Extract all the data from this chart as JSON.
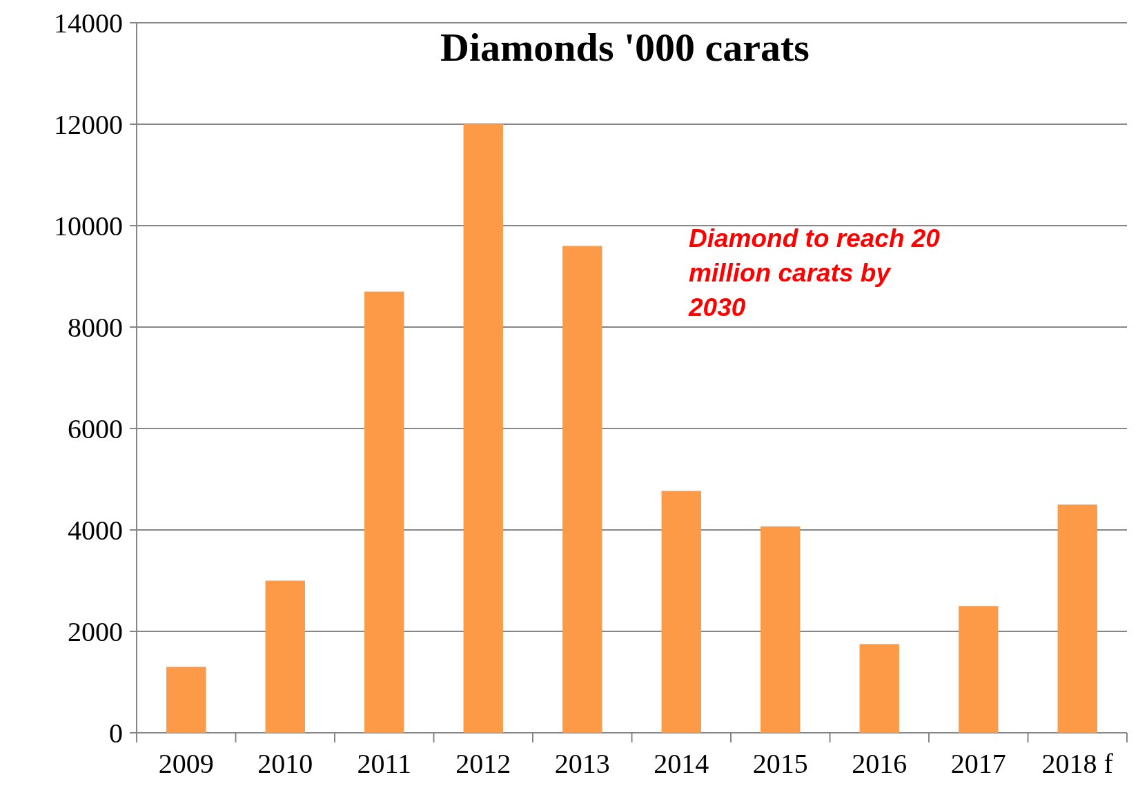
{
  "chart_data": {
    "type": "bar",
    "title": "Diamonds '000 carats",
    "categories": [
      "2009",
      "2010",
      "2011",
      "2012",
      "2013",
      "2014",
      "2015",
      "2016",
      "2017",
      "2018 f"
    ],
    "values": [
      1300,
      3000,
      8700,
      12000,
      9600,
      4770,
      4070,
      1750,
      2500,
      4500
    ],
    "color": "#fd9a47",
    "ylim": [
      0,
      14000
    ],
    "yticks": [
      0,
      2000,
      4000,
      6000,
      8000,
      10000,
      12000,
      14000
    ],
    "grid": "y",
    "annotations": [
      "Diamond to reach 20 million carats  by 2030"
    ]
  }
}
